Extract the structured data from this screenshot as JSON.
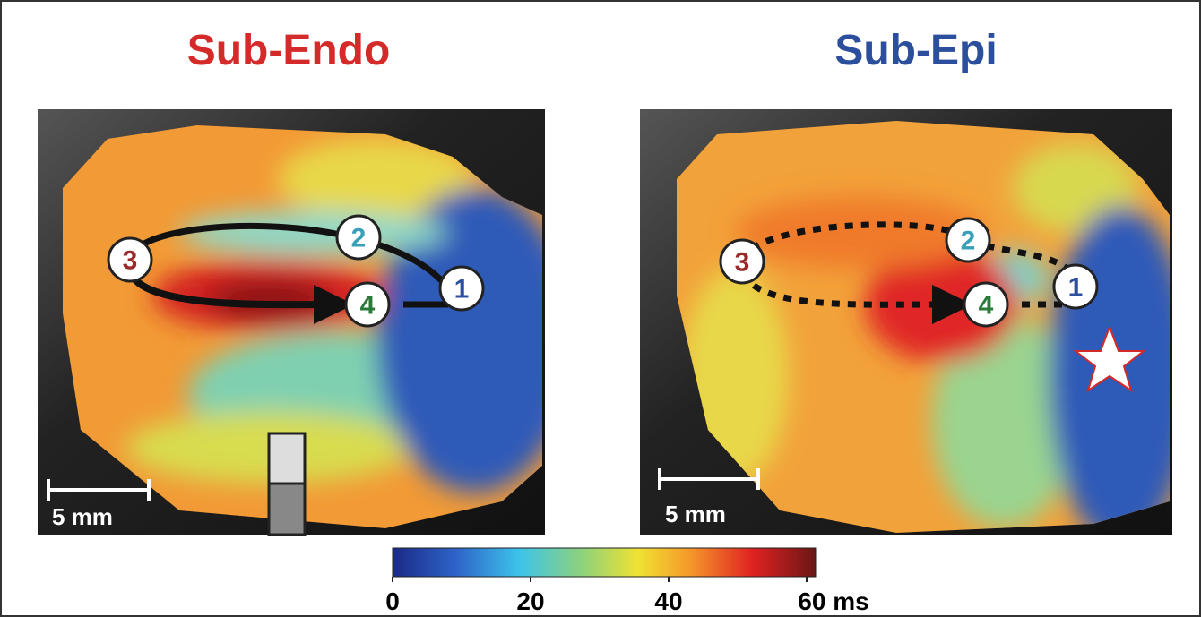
{
  "panels": [
    {
      "title": "Sub-Endo",
      "scale_bar": "5 mm",
      "markers": [
        "1",
        "2",
        "3",
        "4"
      ]
    },
    {
      "title": "Sub-Epi",
      "scale_bar": "5 mm",
      "markers": [
        "1",
        "2",
        "3",
        "4"
      ]
    }
  ],
  "colorbar": {
    "lim": [
      0,
      60
    ],
    "ticks": [
      0,
      20,
      40,
      {
        "value": 60,
        "label": "60 ms"
      }
    ]
  }
}
